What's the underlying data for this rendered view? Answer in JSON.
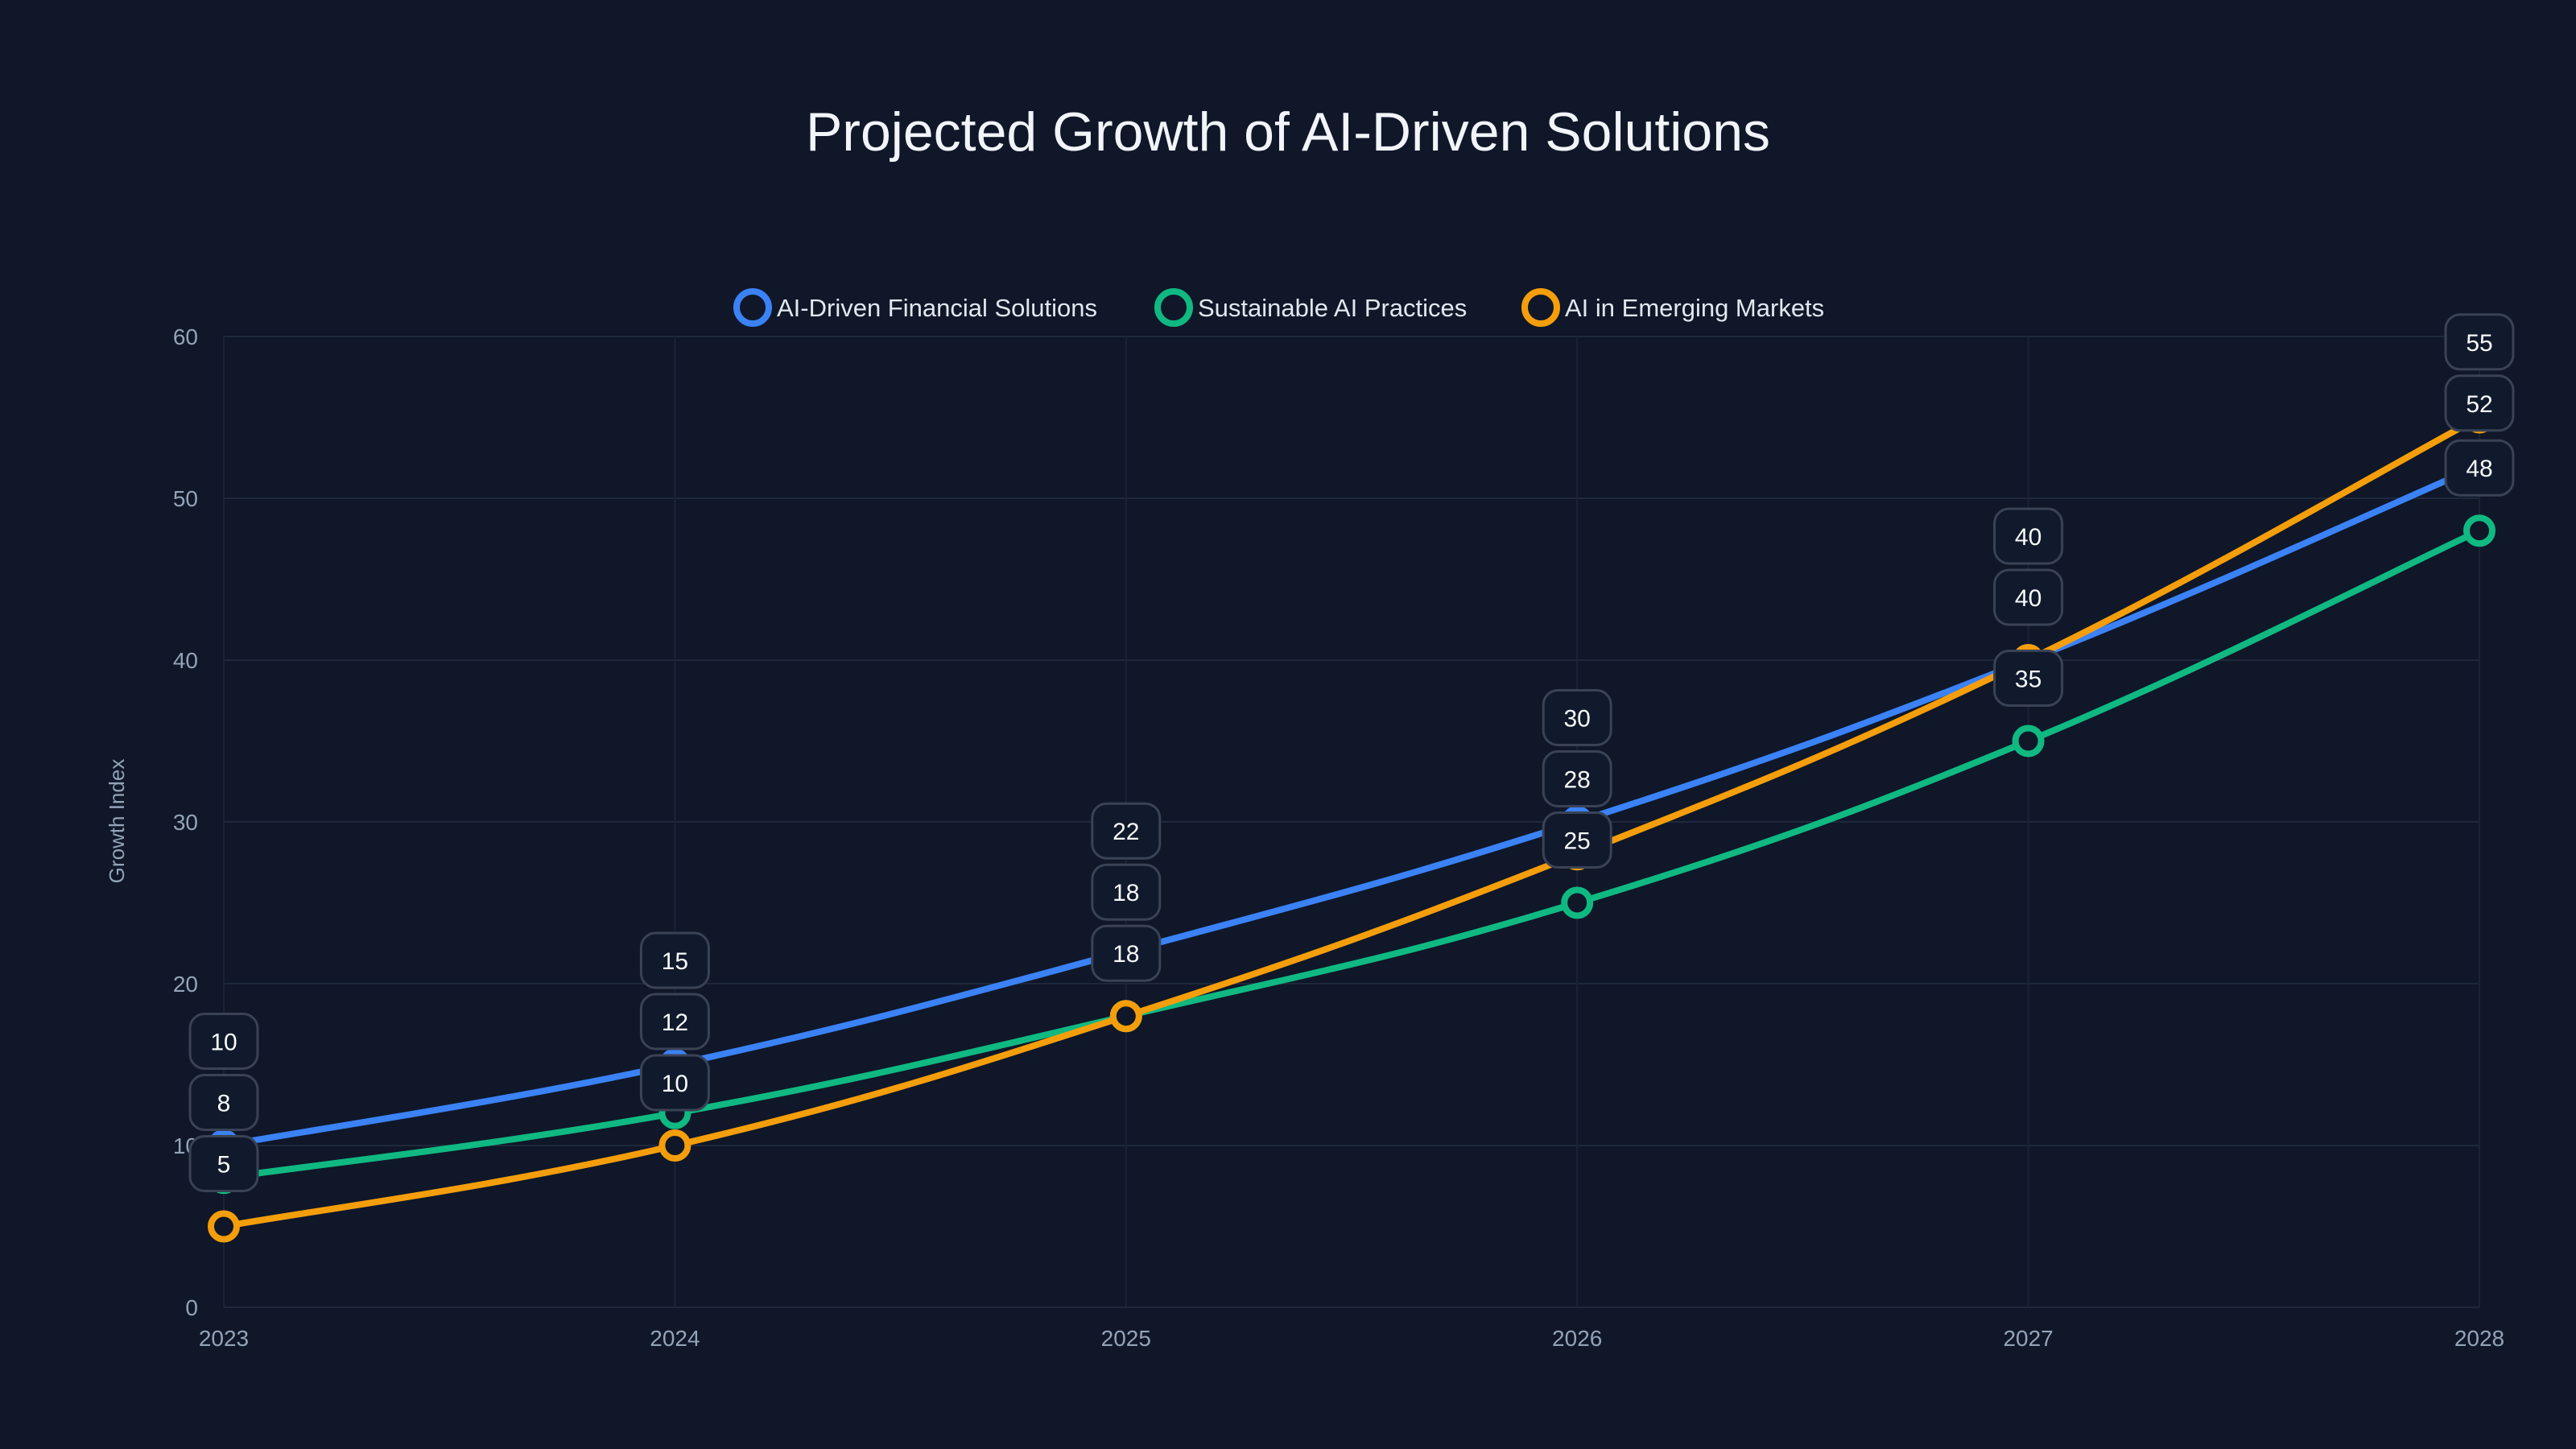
{
  "chart_data": {
    "type": "line",
    "title": "Projected Growth of AI-Driven Solutions",
    "xlabel": "",
    "ylabel": "Growth Index",
    "x": [
      "2023",
      "2024",
      "2025",
      "2026",
      "2027",
      "2028"
    ],
    "ylim": [
      0,
      60
    ],
    "yticks": [
      0,
      10,
      20,
      30,
      40,
      50,
      60
    ],
    "grid": true,
    "legend_position": "top-center",
    "series": [
      {
        "name": "AI-Driven Financial Solutions",
        "color": "#3b82f6",
        "values": [
          10,
          15,
          22,
          30,
          40,
          52
        ]
      },
      {
        "name": "Sustainable AI Practices",
        "color": "#10b981",
        "values": [
          8,
          12,
          18,
          25,
          35,
          48
        ]
      },
      {
        "name": "AI in Emerging Markets",
        "color": "#f59e0b",
        "values": [
          5,
          10,
          18,
          28,
          40,
          55
        ]
      }
    ]
  }
}
